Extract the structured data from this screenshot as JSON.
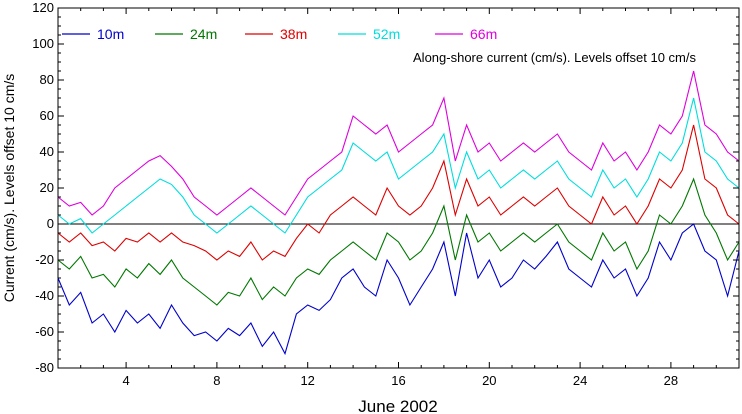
{
  "chart_data": {
    "type": "line",
    "title": "",
    "xlabel": "June 2002",
    "ylabel": "Current (cm/s). Levels offset 10 cm/s",
    "annotation": "Along-shore current (cm/s). Levels offset 10 cm/s",
    "xlim": [
      1,
      31
    ],
    "ylim": [
      -80,
      120
    ],
    "x_ticks": [
      4,
      8,
      12,
      16,
      20,
      24,
      28
    ],
    "x_tick_labels": [
      "4",
      "8",
      "12",
      "16",
      "20",
      "24",
      "28"
    ],
    "y_ticks": [
      -80,
      -60,
      -40,
      -20,
      0,
      20,
      40,
      60,
      80,
      100,
      120
    ],
    "y_tick_labels": [
      "-80",
      "-60",
      "-40",
      "-20",
      "0",
      "20",
      "40",
      "60",
      "80",
      "100",
      "120"
    ],
    "zero_line": 0,
    "grid": false,
    "legend_placement": "top-left",
    "series": [
      {
        "name": "10m",
        "color": "#0000cc",
        "x": [
          1,
          1.5,
          2,
          2.5,
          3,
          3.5,
          4,
          4.5,
          5,
          5.5,
          6,
          6.5,
          7,
          7.5,
          8,
          8.5,
          9,
          9.5,
          10,
          10.5,
          11,
          11.5,
          12,
          12.5,
          13,
          13.5,
          14,
          14.5,
          15,
          15.5,
          16,
          16.5,
          17,
          17.5,
          18,
          18.5,
          19,
          19.5,
          20,
          20.5,
          21,
          21.5,
          22,
          22.5,
          23,
          23.5,
          24,
          24.5,
          25,
          25.5,
          26,
          26.5,
          27,
          27.5,
          28,
          28.5,
          29,
          29.5,
          30,
          30.5,
          31
        ],
        "y": [
          -30,
          -45,
          -38,
          -55,
          -50,
          -60,
          -48,
          -55,
          -50,
          -58,
          -45,
          -55,
          -62,
          -60,
          -65,
          -58,
          -62,
          -55,
          -68,
          -60,
          -72,
          -50,
          -45,
          -48,
          -42,
          -30,
          -25,
          -35,
          -40,
          -20,
          -30,
          -45,
          -35,
          -25,
          -10,
          -40,
          -5,
          -30,
          -20,
          -35,
          -30,
          -20,
          -25,
          -18,
          -10,
          -25,
          -30,
          -35,
          -20,
          -30,
          -25,
          -40,
          -30,
          -10,
          -20,
          -5,
          0,
          -15,
          -20,
          -40,
          -15
        ]
      },
      {
        "name": "24m",
        "color": "#007700",
        "x": [
          1,
          1.5,
          2,
          2.5,
          3,
          3.5,
          4,
          4.5,
          5,
          5.5,
          6,
          6.5,
          7,
          7.5,
          8,
          8.5,
          9,
          9.5,
          10,
          10.5,
          11,
          11.5,
          12,
          12.5,
          13,
          13.5,
          14,
          14.5,
          15,
          15.5,
          16,
          16.5,
          17,
          17.5,
          18,
          18.5,
          19,
          19.5,
          20,
          20.5,
          21,
          21.5,
          22,
          22.5,
          23,
          23.5,
          24,
          24.5,
          25,
          25.5,
          26,
          26.5,
          27,
          27.5,
          28,
          28.5,
          29,
          29.5,
          30,
          30.5,
          31
        ],
        "y": [
          -20,
          -25,
          -18,
          -30,
          -28,
          -35,
          -25,
          -30,
          -22,
          -28,
          -20,
          -30,
          -35,
          -40,
          -45,
          -38,
          -40,
          -30,
          -42,
          -35,
          -40,
          -30,
          -25,
          -28,
          -20,
          -15,
          -10,
          -15,
          -20,
          -5,
          -10,
          -20,
          -15,
          -5,
          10,
          -20,
          5,
          -10,
          -5,
          -15,
          -10,
          -5,
          -10,
          -5,
          0,
          -10,
          -15,
          -20,
          -5,
          -15,
          -10,
          -25,
          -15,
          5,
          0,
          10,
          25,
          5,
          -5,
          -20,
          -10
        ]
      },
      {
        "name": "38m",
        "color": "#dd0000",
        "x": [
          1,
          1.5,
          2,
          2.5,
          3,
          3.5,
          4,
          4.5,
          5,
          5.5,
          6,
          6.5,
          7,
          7.5,
          8,
          8.5,
          9,
          9.5,
          10,
          10.5,
          11,
          11.5,
          12,
          12.5,
          13,
          13.5,
          14,
          14.5,
          15,
          15.5,
          16,
          16.5,
          17,
          17.5,
          18,
          18.5,
          19,
          19.5,
          20,
          20.5,
          21,
          21.5,
          22,
          22.5,
          23,
          23.5,
          24,
          24.5,
          25,
          25.5,
          26,
          26.5,
          27,
          27.5,
          28,
          28.5,
          29,
          29.5,
          30,
          30.5,
          31
        ],
        "y": [
          -5,
          -10,
          -5,
          -12,
          -10,
          -15,
          -8,
          -10,
          -5,
          -10,
          -5,
          -10,
          -12,
          -15,
          -20,
          -15,
          -18,
          -10,
          -20,
          -15,
          -18,
          -8,
          0,
          -5,
          5,
          10,
          15,
          10,
          5,
          20,
          10,
          5,
          10,
          20,
          35,
          5,
          25,
          10,
          15,
          5,
          10,
          15,
          10,
          15,
          20,
          10,
          5,
          0,
          15,
          5,
          10,
          0,
          10,
          25,
          20,
          30,
          55,
          25,
          20,
          5,
          0
        ]
      },
      {
        "name": "52m",
        "color": "#00dddd",
        "x": [
          1,
          1.5,
          2,
          2.5,
          3,
          3.5,
          4,
          4.5,
          5,
          5.5,
          6,
          6.5,
          7,
          7.5,
          8,
          8.5,
          9,
          9.5,
          10,
          10.5,
          11,
          11.5,
          12,
          12.5,
          13,
          13.5,
          14,
          14.5,
          15,
          15.5,
          16,
          16.5,
          17,
          17.5,
          18,
          18.5,
          19,
          19.5,
          20,
          20.5,
          21,
          21.5,
          22,
          22.5,
          23,
          23.5,
          24,
          24.5,
          25,
          25.5,
          26,
          26.5,
          27,
          27.5,
          28,
          28.5,
          29,
          29.5,
          30,
          30.5,
          31
        ],
        "y": [
          5,
          0,
          3,
          -5,
          0,
          5,
          10,
          15,
          20,
          25,
          22,
          15,
          5,
          0,
          -5,
          0,
          5,
          10,
          5,
          0,
          -5,
          5,
          15,
          20,
          25,
          30,
          45,
          40,
          35,
          40,
          25,
          30,
          35,
          40,
          50,
          20,
          40,
          25,
          30,
          20,
          25,
          30,
          25,
          30,
          35,
          25,
          20,
          15,
          30,
          20,
          25,
          15,
          25,
          40,
          35,
          45,
          70,
          40,
          35,
          25,
          20
        ]
      },
      {
        "name": "66m",
        "color": "#dd00dd",
        "x": [
          1,
          1.5,
          2,
          2.5,
          3,
          3.5,
          4,
          4.5,
          5,
          5.5,
          6,
          6.5,
          7,
          7.5,
          8,
          8.5,
          9,
          9.5,
          10,
          10.5,
          11,
          11.5,
          12,
          12.5,
          13,
          13.5,
          14,
          14.5,
          15,
          15.5,
          16,
          16.5,
          17,
          17.5,
          18,
          18.5,
          19,
          19.5,
          20,
          20.5,
          21,
          21.5,
          22,
          22.5,
          23,
          23.5,
          24,
          24.5,
          25,
          25.5,
          26,
          26.5,
          27,
          27.5,
          28,
          28.5,
          29,
          29.5,
          30,
          30.5,
          31
        ],
        "y": [
          15,
          10,
          12,
          5,
          10,
          20,
          25,
          30,
          35,
          38,
          32,
          25,
          15,
          10,
          5,
          10,
          15,
          20,
          15,
          10,
          5,
          15,
          25,
          30,
          35,
          40,
          60,
          55,
          50,
          55,
          40,
          45,
          50,
          55,
          70,
          35,
          55,
          40,
          45,
          35,
          40,
          45,
          40,
          45,
          50,
          40,
          35,
          30,
          45,
          35,
          40,
          30,
          40,
          55,
          50,
          60,
          85,
          55,
          50,
          40,
          35
        ]
      }
    ]
  }
}
